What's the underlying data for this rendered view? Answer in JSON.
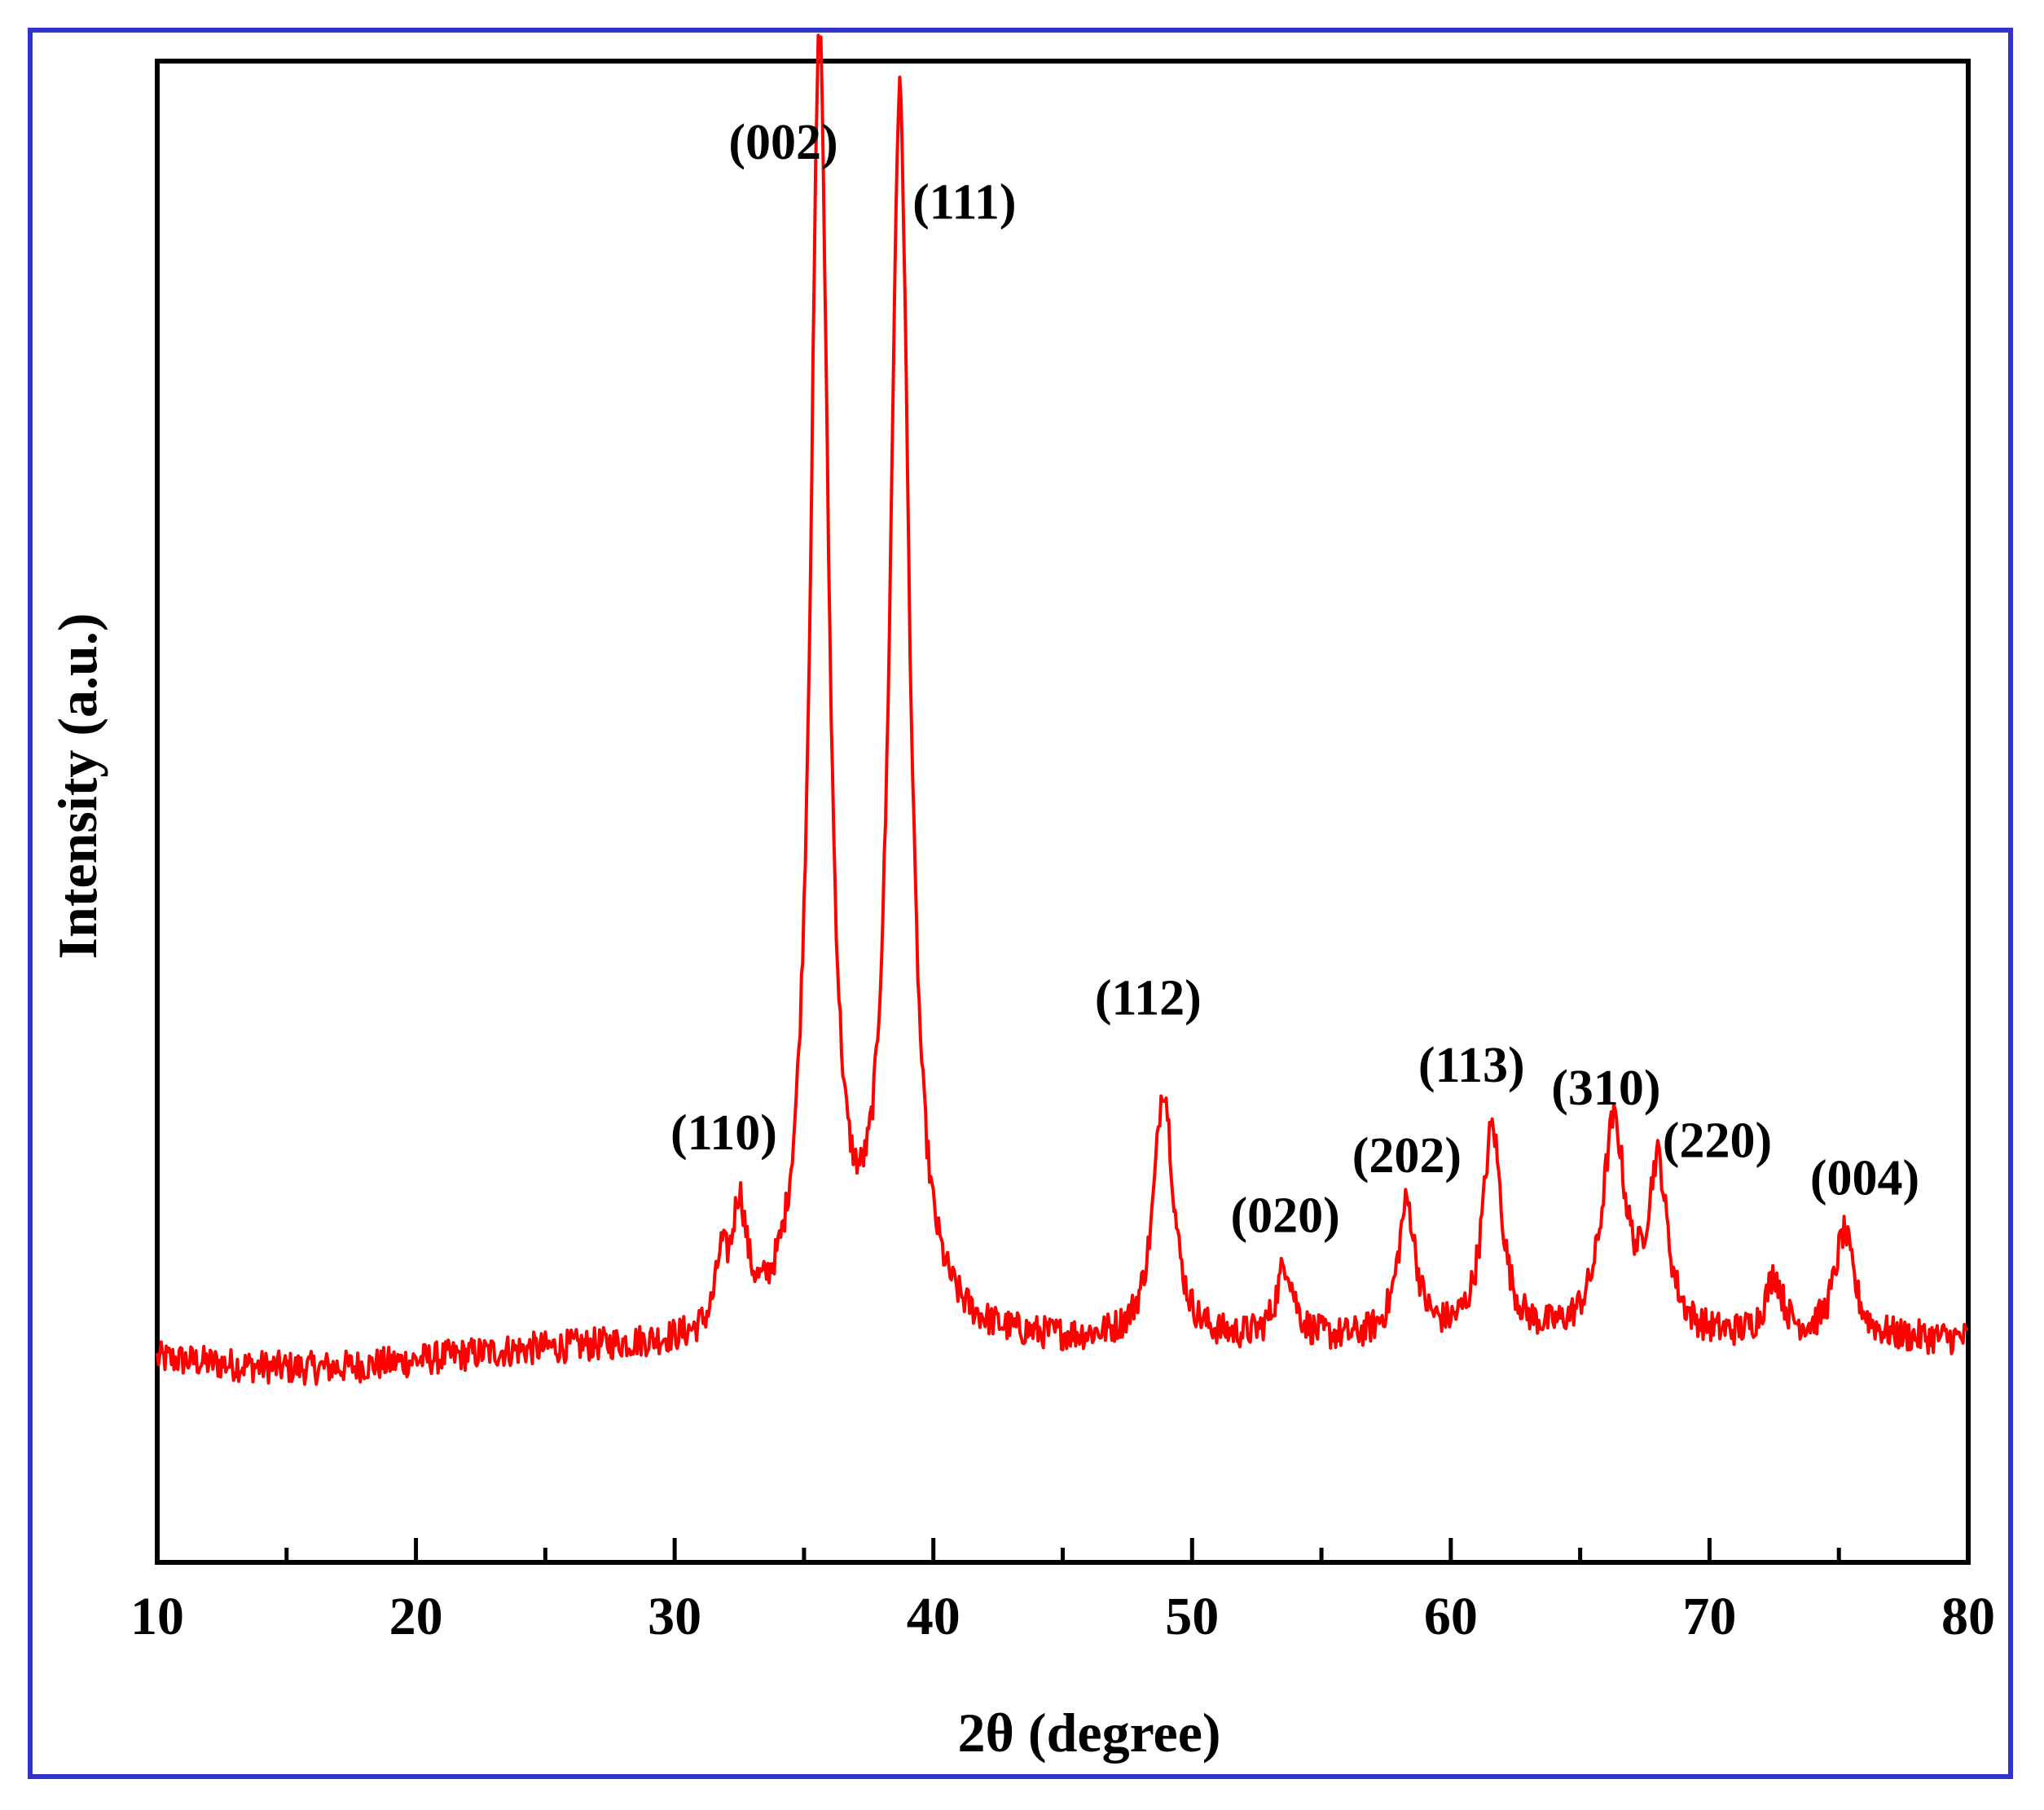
{
  "chart_data": {
    "type": "line",
    "title": "",
    "xlabel": "2θ (degree)",
    "ylabel": "Intensity (a.u.)",
    "xlim": [
      10,
      80
    ],
    "ylim": [
      0,
      100
    ],
    "xticks": [
      "10",
      "20",
      "30",
      "40",
      "50",
      "60",
      "70",
      "80"
    ],
    "grid": false,
    "legend": "none",
    "line_color": "#ff0000",
    "baseline": 14,
    "peaks": [
      {
        "x": 31.8,
        "height": 4,
        "width": 0.25
      },
      {
        "x": 32.5,
        "height": 8,
        "width": 0.35
      },
      {
        "x": 35.6,
        "height": 86,
        "width": 0.42
      },
      {
        "x": 38.7,
        "height": 82,
        "width": 0.45
      },
      {
        "x": 48.9,
        "height": 17,
        "width": 0.45
      },
      {
        "x": 53.6,
        "height": 5,
        "width": 0.4
      },
      {
        "x": 58.3,
        "height": 9,
        "width": 0.42
      },
      {
        "x": 61.6,
        "height": 14,
        "width": 0.45
      },
      {
        "x": 66.3,
        "height": 14,
        "width": 0.55
      },
      {
        "x": 68.0,
        "height": 11,
        "width": 0.45
      },
      {
        "x": 72.5,
        "height": 4,
        "width": 0.4
      },
      {
        "x": 75.2,
        "height": 7,
        "width": 0.45
      }
    ],
    "annotations": [
      {
        "text": "(110)",
        "x": 31.9,
        "y": 27.5
      },
      {
        "text": "(002)",
        "x": 34.2,
        "y": 93.5
      },
      {
        "text": "(111)",
        "x": 41.2,
        "y": 89.5
      },
      {
        "text": "(112)",
        "x": 48.3,
        "y": 36.5
      },
      {
        "text": "(020)",
        "x": 53.6,
        "y": 22
      },
      {
        "text": "(202)",
        "x": 58.3,
        "y": 26
      },
      {
        "text": "(113)",
        "x": 60.8,
        "y": 32
      },
      {
        "text": "(310)",
        "x": 66.0,
        "y": 30.5
      },
      {
        "text": "(220)",
        "x": 70.3,
        "y": 27
      },
      {
        "text": "(004)",
        "x": 76.0,
        "y": 24.5
      }
    ]
  }
}
